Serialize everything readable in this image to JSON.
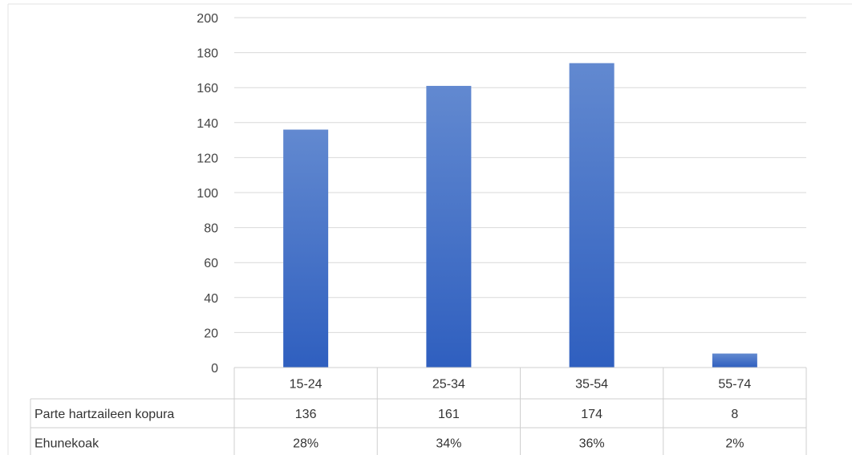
{
  "chart_data": {
    "type": "bar",
    "categories": [
      "15-24",
      "25-34",
      "35-54",
      "55-74"
    ],
    "values": [
      136,
      161,
      174,
      8
    ],
    "ylim": [
      0,
      200
    ],
    "yticks": [
      0,
      20,
      40,
      60,
      80,
      100,
      120,
      140,
      160,
      180,
      200
    ],
    "grid": true,
    "legend": "none",
    "bar_color": "#4472C4",
    "data_table": {
      "rows": [
        {
          "label": "Parte hartzaileen kopura",
          "cells": [
            "136",
            "161",
            "174",
            "8"
          ]
        },
        {
          "label": "Ehunekoak",
          "cells": [
            "28%",
            "34%",
            "36%",
            "2%"
          ]
        }
      ]
    }
  }
}
